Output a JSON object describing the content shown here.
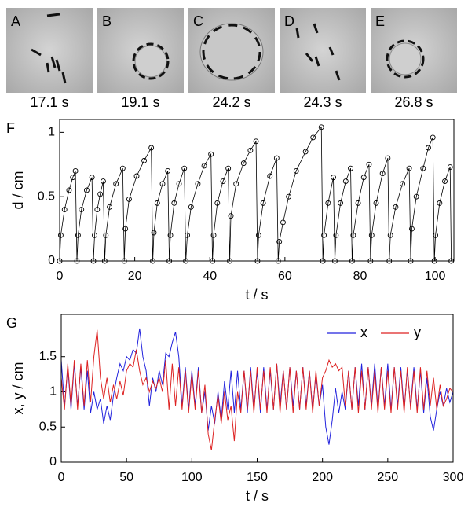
{
  "images": [
    {
      "label": "A",
      "caption": "17.1 s"
    },
    {
      "label": "B",
      "caption": "19.1 s"
    },
    {
      "label": "C",
      "caption": "24.2 s"
    },
    {
      "label": "D",
      "caption": "24.3 s"
    },
    {
      "label": "E",
      "caption": "26.8 s"
    }
  ],
  "chart_data": [
    {
      "type": "line",
      "label": "F",
      "marker": "o",
      "color": "#000000",
      "xlabel": "t / s",
      "ylabel": "d / cm",
      "xlim": [
        0,
        105
      ],
      "ylim": [
        0,
        1.1
      ],
      "xticks": [
        0,
        20,
        40,
        60,
        80,
        100
      ],
      "yticks": [
        0,
        0.5,
        1
      ],
      "x": [
        0,
        0.3,
        1.3,
        2.5,
        3.5,
        4.2,
        4.6,
        4.9,
        5.8,
        7.2,
        8.6,
        9,
        9.3,
        10,
        10.8,
        11.6,
        12,
        12.3,
        13.3,
        15,
        16.8,
        17.2,
        17.5,
        18.5,
        20.5,
        22.5,
        24.4,
        24.8,
        25.1,
        26,
        27.4,
        28.8,
        29.2,
        29.5,
        30.5,
        31.8,
        33.2,
        33.6,
        34,
        35,
        36.8,
        38.5,
        40.3,
        40.7,
        41,
        42,
        43.5,
        44.9,
        45.3,
        45.6,
        47,
        49,
        50.8,
        52.3,
        52.7,
        53,
        54.2,
        56,
        57.8,
        58.2,
        58.5,
        59.5,
        61,
        63,
        65.5,
        67.5,
        69.7,
        70.1,
        70.4,
        71.5,
        72.9,
        73.3,
        73.6,
        74.8,
        76.2,
        77.5,
        77.9,
        78.2,
        79.5,
        81,
        82.4,
        82.8,
        83.1,
        84.3,
        86,
        87.4,
        87.8,
        88.1,
        89.5,
        91.3,
        93.1,
        93.5,
        93.8,
        95,
        96.8,
        98.2,
        99.4,
        99.8,
        100.1,
        101.2,
        102.6,
        104,
        104.3
      ],
      "series": [
        {
          "color": "#000000",
          "values": [
            0,
            0.2,
            0.4,
            0.55,
            0.65,
            0.7,
            0,
            0.2,
            0.4,
            0.55,
            0.65,
            0,
            0.2,
            0.4,
            0.52,
            0.62,
            0,
            0.2,
            0.42,
            0.6,
            0.72,
            0,
            0.25,
            0.48,
            0.66,
            0.78,
            0.88,
            0,
            0.22,
            0.45,
            0.6,
            0.7,
            0,
            0.2,
            0.45,
            0.6,
            0.72,
            0,
            0.2,
            0.42,
            0.6,
            0.74,
            0.83,
            0,
            0.2,
            0.45,
            0.62,
            0.72,
            0,
            0.35,
            0.6,
            0.76,
            0.86,
            0.93,
            0,
            0.2,
            0.45,
            0.66,
            0.8,
            0,
            0.15,
            0.3,
            0.5,
            0.7,
            0.85,
            0.96,
            1.04,
            0,
            0.2,
            0.45,
            0.65,
            0,
            0.2,
            0.45,
            0.62,
            0.72,
            0,
            0.2,
            0.45,
            0.65,
            0.75,
            0,
            0.2,
            0.45,
            0.68,
            0.8,
            0,
            0.2,
            0.42,
            0.6,
            0.72,
            0,
            0.25,
            0.5,
            0.72,
            0.88,
            0.96,
            0,
            0.2,
            0.45,
            0.62,
            0.73,
            0
          ]
        }
      ]
    },
    {
      "type": "line",
      "label": "G",
      "xlabel": "t / s",
      "ylabel": "x, y / cm",
      "legend": "upper right",
      "xlim": [
        0,
        300
      ],
      "ylim": [
        0,
        2.1
      ],
      "xticks": [
        0,
        50,
        100,
        150,
        200,
        250,
        300
      ],
      "yticks": [
        0,
        0.5,
        1,
        1.5
      ],
      "x": [
        0,
        2.5,
        5,
        7.5,
        10,
        12.5,
        15,
        17.5,
        20,
        22.5,
        25,
        27.5,
        30,
        32.5,
        35,
        37.5,
        40,
        42.5,
        45,
        47.5,
        50,
        52.5,
        55,
        57.5,
        60,
        62.5,
        65,
        67.5,
        70,
        72.5,
        75,
        77.5,
        80,
        82.5,
        85,
        87.5,
        90,
        92.5,
        95,
        97.5,
        100,
        102.5,
        105,
        107.5,
        110,
        112.5,
        115,
        117.5,
        120,
        122.5,
        125,
        127.5,
        130,
        132.5,
        135,
        137.5,
        140,
        142.5,
        145,
        147.5,
        150,
        152.5,
        155,
        157.5,
        160,
        162.5,
        165,
        167.5,
        170,
        172.5,
        175,
        177.5,
        180,
        182.5,
        185,
        187.5,
        190,
        192.5,
        195,
        197.5,
        200,
        202.5,
        205,
        207.5,
        210,
        212.5,
        215,
        217.5,
        220,
        222.5,
        225,
        227.5,
        230,
        232.5,
        235,
        237.5,
        240,
        242.5,
        245,
        247.5,
        250,
        252.5,
        255,
        257.5,
        260,
        262.5,
        265,
        267.5,
        270,
        272.5,
        275,
        277.5,
        280,
        282.5,
        285,
        287.5,
        290,
        292.5,
        295,
        297.5,
        300
      ],
      "series": [
        {
          "name": "x",
          "color": "#2222dd",
          "values": [
            1.45,
            0.8,
            1.35,
            0.75,
            1.4,
            0.8,
            1.35,
            0.75,
            1.3,
            0.7,
            1.0,
            0.75,
            0.9,
            0.55,
            0.8,
            0.6,
            0.95,
            1.2,
            1.4,
            1.3,
            1.5,
            1.45,
            1.6,
            1.55,
            1.9,
            1.5,
            1.3,
            0.8,
            1.2,
            1.0,
            1.3,
            1.1,
            1.55,
            1.5,
            1.7,
            1.85,
            1.5,
            0.8,
            1.35,
            0.75,
            1.3,
            0.8,
            1.35,
            0.7,
            1.0,
            0.45,
            0.8,
            0.55,
            1.0,
            0.6,
            1.15,
            0.75,
            1.3,
            0.7,
            1.3,
            0.75,
            1.3,
            0.7,
            1.35,
            0.75,
            1.3,
            0.7,
            1.35,
            0.75,
            1.3,
            0.75,
            1.4,
            0.8,
            1.3,
            0.75,
            1.35,
            0.8,
            1.3,
            0.75,
            1.35,
            0.8,
            1.3,
            0.75,
            1.25,
            0.8,
            1.1,
            0.5,
            0.25,
            0.6,
            1.05,
            0.7,
            1.0,
            0.75,
            1.3,
            0.75,
            1.35,
            0.8,
            1.4,
            0.75,
            1.35,
            0.8,
            1.4,
            0.75,
            1.35,
            0.8,
            1.4,
            0.75,
            1.35,
            0.8,
            1.35,
            0.75,
            1.3,
            0.8,
            1.35,
            0.75,
            1.3,
            0.7,
            1.2,
            0.65,
            0.45,
            0.75,
            1.0,
            0.8,
            1.05,
            0.85,
            1.0
          ]
        },
        {
          "name": "y",
          "color": "#dd2222",
          "values": [
            1.2,
            0.75,
            1.4,
            0.8,
            1.45,
            0.75,
            1.4,
            0.8,
            1.45,
            0.85,
            1.5,
            1.88,
            1.2,
            0.9,
            1.2,
            0.85,
            1.1,
            0.9,
            1.15,
            0.95,
            1.3,
            1.4,
            1.35,
            1.6,
            1.3,
            1.1,
            1.2,
            1.0,
            1.15,
            1.05,
            1.2,
            1.0,
            1.45,
            0.75,
            1.4,
            0.8,
            1.35,
            0.75,
            1.3,
            0.7,
            1.25,
            0.75,
            1.3,
            0.7,
            1.1,
            0.4,
            0.17,
            0.6,
            0.95,
            0.55,
            1.0,
            0.6,
            0.8,
            0.3,
            1.0,
            0.7,
            1.3,
            0.75,
            1.3,
            0.7,
            1.35,
            0.75,
            1.3,
            0.7,
            1.35,
            0.75,
            1.4,
            0.7,
            1.3,
            0.75,
            1.35,
            0.7,
            1.3,
            0.75,
            1.35,
            0.75,
            1.3,
            0.7,
            1.3,
            0.8,
            1.2,
            1.3,
            1.45,
            1.35,
            1.4,
            1.3,
            1.35,
            0.8,
            1.3,
            0.75,
            1.35,
            0.7,
            1.3,
            0.75,
            1.35,
            0.75,
            1.3,
            0.7,
            1.35,
            0.75,
            1.3,
            0.7,
            1.35,
            0.75,
            1.3,
            0.7,
            1.35,
            0.75,
            1.3,
            0.7,
            1.35,
            0.75,
            1.3,
            0.8,
            1.2,
            0.75,
            1.1,
            0.8,
            0.9,
            1.05,
            1.0
          ]
        }
      ]
    }
  ]
}
